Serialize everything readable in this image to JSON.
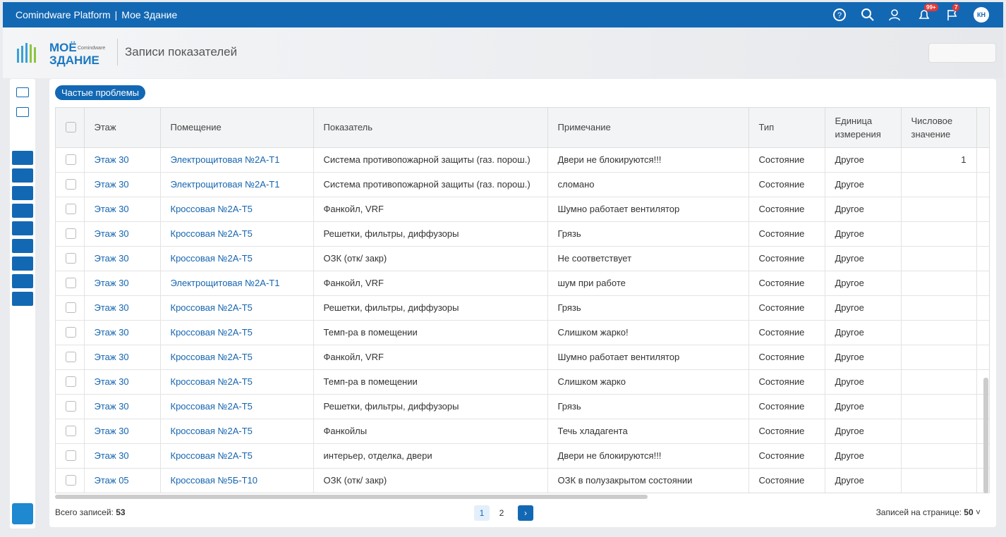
{
  "topbar": {
    "app": "Comindware Platform",
    "separator": "|",
    "workspace": "Мое Здание",
    "notifications_badge": "99+",
    "messages_badge": "7",
    "avatar": "КН"
  },
  "logo": {
    "line1": "МОЁ",
    "line2": "ЗДАНИЕ",
    "brand": "Comindware"
  },
  "page_title": "Записи показателей",
  "filter_button": "Частые проблемы",
  "table": {
    "columns": [
      "Этаж",
      "Помещение",
      "Показатель",
      "Примечание",
      "Тип",
      "Единица измерения",
      "Числовое значение"
    ],
    "rows": [
      [
        "Этаж 30",
        "Электрощитовая №2А-Т1",
        "Система противопожарной защиты (газ. порош.)",
        "Двери не блокируются!!!",
        "Состояние",
        "Другое",
        1
      ],
      [
        "Этаж 30",
        "Электрощитовая №2А-Т1",
        "Система противопожарной защиты (газ. порош.)",
        "сломано",
        "Состояние",
        "Другое"
      ],
      [
        "Этаж 30",
        "Кроссовая №2А-Т5",
        "Фанкойл, VRF",
        "Шумно работает вентилятор",
        "Состояние",
        "Другое"
      ],
      [
        "Этаж 30",
        "Кроссовая №2А-Т5",
        "Решетки, фильтры, диффузоры",
        "Грязь",
        "Состояние",
        "Другое"
      ],
      [
        "Этаж 30",
        "Кроссовая №2А-Т5",
        "ОЗК (отк/ закр)",
        "Не соответствует",
        "Состояние",
        "Другое"
      ],
      [
        "Этаж 30",
        "Электрощитовая №2А-Т1",
        "Фанкойл, VRF",
        "шум при работе",
        "Состояние",
        "Другое"
      ],
      [
        "Этаж 30",
        "Кроссовая №2А-Т5",
        "Решетки, фильтры, диффузоры",
        "Грязь",
        "Состояние",
        "Другое"
      ],
      [
        "Этаж 30",
        "Кроссовая №2А-Т5",
        "Темп-ра в помещении",
        "Слишком жарко!",
        "Состояние",
        "Другое"
      ],
      [
        "Этаж 30",
        "Кроссовая №2А-Т5",
        "Фанкойл, VRF",
        "Шумно работает вентилятор",
        "Состояние",
        "Другое"
      ],
      [
        "Этаж 30",
        "Кроссовая №2А-Т5",
        "Темп-ра в помещении",
        "Слишком жарко",
        "Состояние",
        "Другое"
      ],
      [
        "Этаж 30",
        "Кроссовая №2А-Т5",
        "Решетки, фильтры, диффузоры",
        "Грязь",
        "Состояние",
        "Другое"
      ],
      [
        "Этаж 30",
        "Кроссовая №2А-Т5",
        "Фанкойлы",
        "Течь хладагента",
        "Состояние",
        "Другое"
      ],
      [
        "Этаж 30",
        "Кроссовая №2А-Т5",
        "интерьер, отделка, двери",
        "Двери не блокируются!!!",
        "Состояние",
        "Другое"
      ],
      [
        "Этаж 05",
        "Кроссовая №5Б-Т10",
        "ОЗК (отк/ закр)",
        "ОЗК в полузакрытом состоянии",
        "Состояние",
        "Другое"
      ]
    ]
  },
  "footer": {
    "total_label": "Всего записей:",
    "total": 53,
    "pages": [
      1,
      2
    ],
    "page_size_label": "Записей на странице:",
    "page_size": 50
  }
}
